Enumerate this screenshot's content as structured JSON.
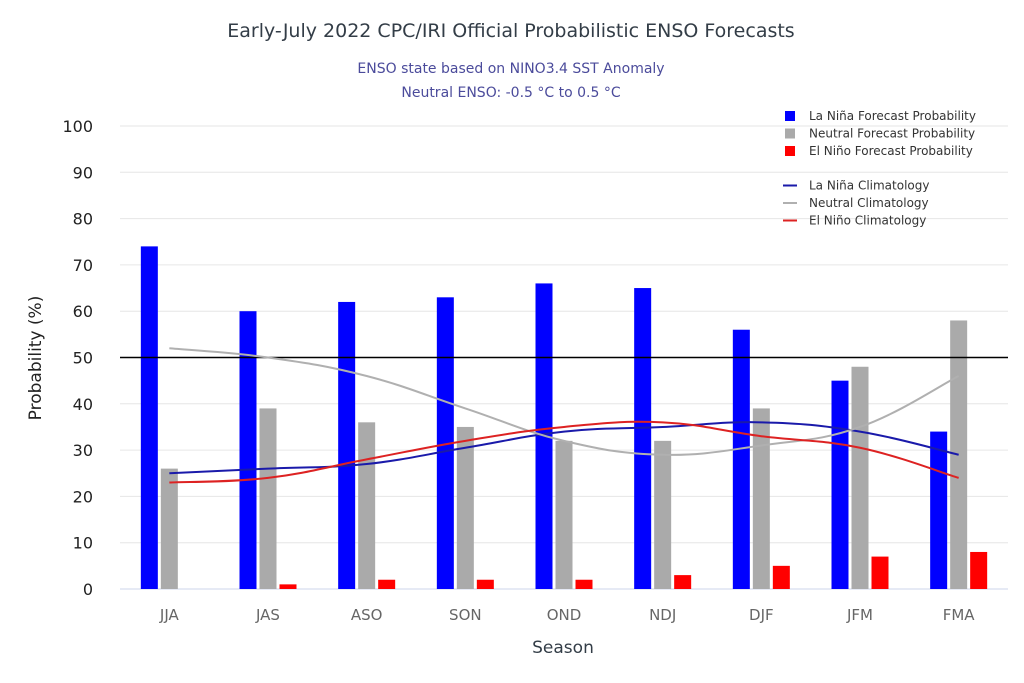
{
  "chart_data": {
    "type": "bar",
    "title": "Early-July 2022 CPC/IRI Official Probabilistic ENSO Forecasts",
    "subtitle": [
      "ENSO state based on NINO3.4 SST Anomaly",
      "Neutral ENSO: -0.5 °C to 0.5 °C"
    ],
    "xlabel": "Season",
    "ylabel": "Probability (%)",
    "ylim": [
      0,
      100
    ],
    "yticks": [
      0,
      10,
      20,
      30,
      40,
      50,
      60,
      70,
      80,
      90,
      100
    ],
    "grid": true,
    "reference_line": 50,
    "legend_position": "top-right",
    "categories": [
      "JJA",
      "JAS",
      "ASO",
      "SON",
      "OND",
      "NDJ",
      "DJF",
      "JFM",
      "FMA"
    ],
    "series": [
      {
        "name": "La Niña Forecast Probability",
        "kind": "bar",
        "color": "#0000ff",
        "values": [
          74,
          60,
          62,
          63,
          66,
          65,
          56,
          45,
          34
        ]
      },
      {
        "name": "Neutral Forecast Probability",
        "kind": "bar",
        "color": "#aaaaaa",
        "values": [
          26,
          39,
          36,
          35,
          32,
          32,
          39,
          48,
          58
        ]
      },
      {
        "name": "El Niño Forecast Probability",
        "kind": "bar",
        "color": "#ff0000",
        "values": [
          0,
          1,
          2,
          2,
          2,
          3,
          5,
          7,
          8
        ]
      },
      {
        "name": "La Niña Climatology",
        "kind": "line",
        "color": "#1a1aaa",
        "values": [
          25,
          26,
          27,
          30.5,
          34,
          35,
          36,
          34,
          29
        ]
      },
      {
        "name": "Neutral Climatology",
        "kind": "line",
        "color": "#b0b0b0",
        "values": [
          52,
          50,
          46,
          39,
          32,
          29,
          31,
          35,
          46
        ]
      },
      {
        "name": "El Niño Climatology",
        "kind": "line",
        "color": "#dd2222",
        "values": [
          23,
          24,
          28,
          32,
          35,
          36,
          33,
          30.5,
          24
        ]
      }
    ]
  }
}
